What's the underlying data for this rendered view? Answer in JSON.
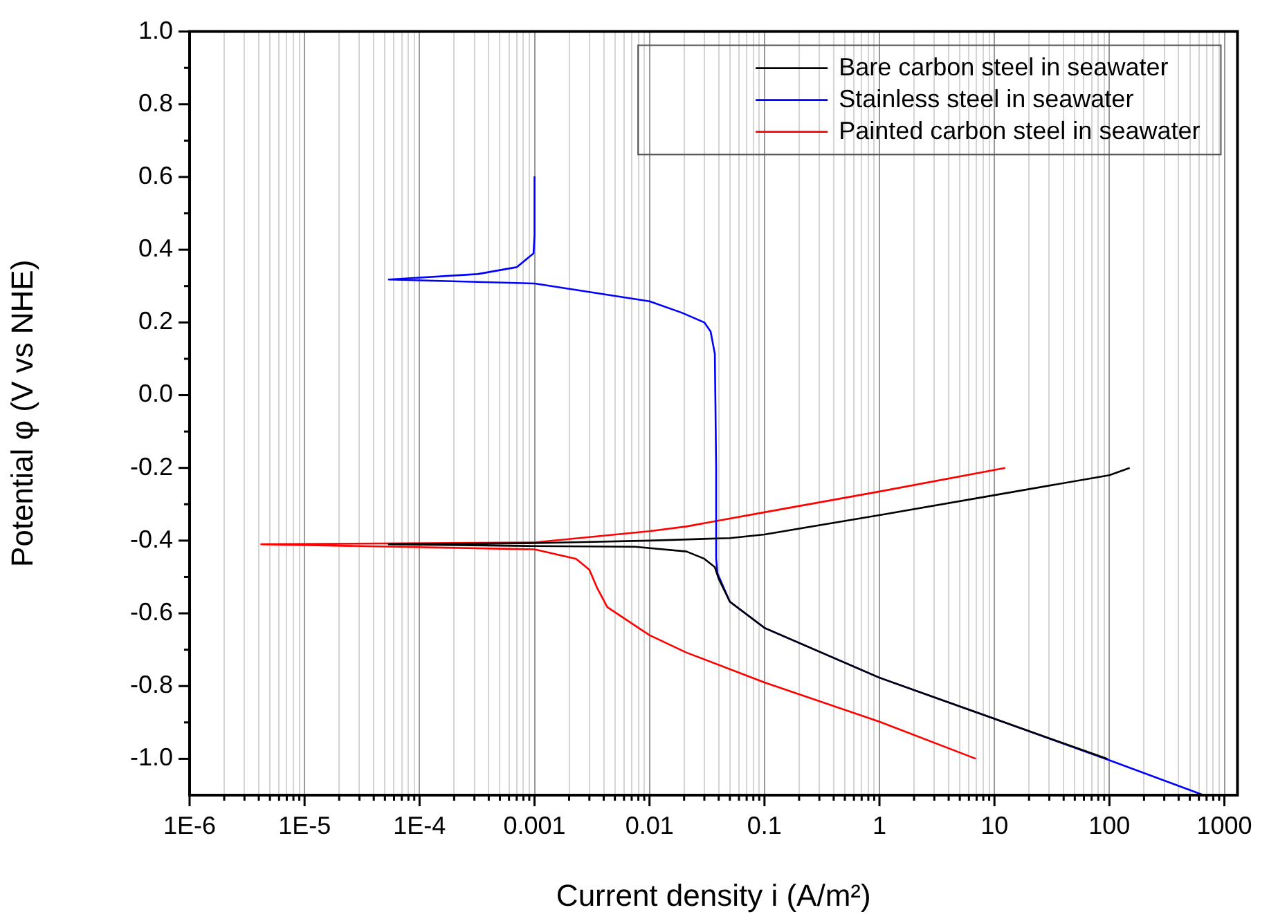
{
  "chart_data": {
    "type": "line",
    "xlabel": "Current density i (A/m²)",
    "ylabel": "Potential φ (V vs NHE)",
    "log": "x",
    "grid": "x",
    "legend": "top right",
    "line_style": "solid",
    "marker": "none",
    "xlim": [
      1e-06,
      1300
    ],
    "ylim": [
      -1.1,
      1.0
    ],
    "xticks": [
      {
        "value": 1e-06,
        "label": "1E-6"
      },
      {
        "value": 2e-06,
        "label": null
      },
      {
        "value": 3e-06,
        "label": null
      },
      {
        "value": 4e-06,
        "label": null
      },
      {
        "value": 5e-06,
        "label": null
      },
      {
        "value": 6e-06,
        "label": null
      },
      {
        "value": 7e-06,
        "label": null
      },
      {
        "value": 8e-06,
        "label": null
      },
      {
        "value": 9e-06,
        "label": null
      },
      {
        "value": 1e-05,
        "label": "1E-5"
      },
      {
        "value": 2e-05,
        "label": null
      },
      {
        "value": 3e-05,
        "label": null
      },
      {
        "value": 4e-05,
        "label": null
      },
      {
        "value": 5e-05,
        "label": null
      },
      {
        "value": 6e-05,
        "label": null
      },
      {
        "value": 7e-05,
        "label": null
      },
      {
        "value": 8e-05,
        "label": null
      },
      {
        "value": 9e-05,
        "label": null
      },
      {
        "value": 0.0001,
        "label": "1E-4"
      },
      {
        "value": 0.0002,
        "label": null
      },
      {
        "value": 0.0003,
        "label": null
      },
      {
        "value": 0.0004,
        "label": null
      },
      {
        "value": 0.0005,
        "label": null
      },
      {
        "value": 0.0006,
        "label": null
      },
      {
        "value": 0.0007,
        "label": null
      },
      {
        "value": 0.0008,
        "label": null
      },
      {
        "value": 0.0009,
        "label": null
      },
      {
        "value": 0.001,
        "label": "0.001"
      },
      {
        "value": 0.002,
        "label": null
      },
      {
        "value": 0.003,
        "label": null
      },
      {
        "value": 0.004,
        "label": null
      },
      {
        "value": 0.005,
        "label": null
      },
      {
        "value": 0.006,
        "label": null
      },
      {
        "value": 0.007,
        "label": null
      },
      {
        "value": 0.008,
        "label": null
      },
      {
        "value": 0.009,
        "label": null
      },
      {
        "value": 0.01,
        "label": "0.01"
      },
      {
        "value": 0.02,
        "label": null
      },
      {
        "value": 0.03,
        "label": null
      },
      {
        "value": 0.04,
        "label": null
      },
      {
        "value": 0.05,
        "label": null
      },
      {
        "value": 0.06,
        "label": null
      },
      {
        "value": 0.07,
        "label": null
      },
      {
        "value": 0.08,
        "label": null
      },
      {
        "value": 0.09,
        "label": null
      },
      {
        "value": 0.1,
        "label": "0.1"
      },
      {
        "value": 0.2,
        "label": null
      },
      {
        "value": 0.3,
        "label": null
      },
      {
        "value": 0.4,
        "label": null
      },
      {
        "value": 0.5,
        "label": null
      },
      {
        "value": 0.6,
        "label": null
      },
      {
        "value": 0.7,
        "label": null
      },
      {
        "value": 0.8,
        "label": null
      },
      {
        "value": 0.9,
        "label": null
      },
      {
        "value": 1,
        "label": "1"
      },
      {
        "value": 2,
        "label": null
      },
      {
        "value": 3,
        "label": null
      },
      {
        "value": 4,
        "label": null
      },
      {
        "value": 5,
        "label": null
      },
      {
        "value": 6,
        "label": null
      },
      {
        "value": 7,
        "label": null
      },
      {
        "value": 8,
        "label": null
      },
      {
        "value": 9,
        "label": null
      },
      {
        "value": 10,
        "label": "10"
      },
      {
        "value": 20,
        "label": null
      },
      {
        "value": 30,
        "label": null
      },
      {
        "value": 40,
        "label": null
      },
      {
        "value": 50,
        "label": null
      },
      {
        "value": 60,
        "label": null
      },
      {
        "value": 70,
        "label": null
      },
      {
        "value": 80,
        "label": null
      },
      {
        "value": 90,
        "label": null
      },
      {
        "value": 100,
        "label": "100"
      },
      {
        "value": 200,
        "label": null
      },
      {
        "value": 300,
        "label": null
      },
      {
        "value": 400,
        "label": null
      },
      {
        "value": 500,
        "label": null
      },
      {
        "value": 600,
        "label": null
      },
      {
        "value": 700,
        "label": null
      },
      {
        "value": 800,
        "label": null
      },
      {
        "value": 900,
        "label": null
      },
      {
        "value": 1000,
        "label": "1000"
      }
    ],
    "yticks": [
      {
        "value": -1.0,
        "label": "-1.0"
      },
      {
        "value": -0.9,
        "label": null
      },
      {
        "value": -0.8,
        "label": "-0.8"
      },
      {
        "value": -0.7,
        "label": null
      },
      {
        "value": -0.6,
        "label": "-0.6"
      },
      {
        "value": -0.5,
        "label": null
      },
      {
        "value": -0.4,
        "label": "-0.4"
      },
      {
        "value": -0.3,
        "label": null
      },
      {
        "value": -0.2,
        "label": "-0.2"
      },
      {
        "value": -0.1,
        "label": null
      },
      {
        "value": 0.0,
        "label": "0.0"
      },
      {
        "value": 0.1,
        "label": null
      },
      {
        "value": 0.2,
        "label": "0.2"
      },
      {
        "value": 0.3,
        "label": null
      },
      {
        "value": 0.4,
        "label": "0.4"
      },
      {
        "value": 0.5,
        "label": null
      },
      {
        "value": 0.6,
        "label": "0.6"
      },
      {
        "value": 0.7,
        "label": null
      },
      {
        "value": 0.8,
        "label": "0.8"
      },
      {
        "value": 0.9,
        "label": null
      },
      {
        "value": 1.0,
        "label": "1.0"
      }
    ],
    "series": [
      {
        "name": "Bare carbon steel in seawater",
        "color": "#000000",
        "x": [
          150,
          100,
          10,
          1,
          0.1,
          0.05,
          0.01,
          0.001,
          5.4e-05,
          0.001,
          0.0075,
          0.021,
          0.03,
          0.037,
          0.04,
          0.05,
          0.1,
          1,
          10,
          96
        ],
        "values": [
          -0.2,
          -0.22,
          -0.275,
          -0.33,
          -0.383,
          -0.393,
          -0.4,
          -0.407,
          -0.41,
          -0.415,
          -0.417,
          -0.43,
          -0.45,
          -0.473,
          -0.505,
          -0.568,
          -0.64,
          -0.777,
          -0.89,
          -1.0
        ]
      },
      {
        "name": "Stainless steel in seawater",
        "color": "#0000ff",
        "x": [
          0.001,
          0.001,
          0.00098,
          0.0007,
          0.00032,
          5.4e-05,
          0.001,
          0.01,
          0.019,
          0.03,
          0.034,
          0.037,
          0.038,
          0.038,
          0.039,
          0.05,
          0.1,
          1,
          10,
          100,
          660
        ],
        "values": [
          0.6,
          0.44,
          0.39,
          0.352,
          0.333,
          0.318,
          0.307,
          0.258,
          0.227,
          0.2,
          0.175,
          0.114,
          -0.2,
          -0.45,
          -0.49,
          -0.568,
          -0.64,
          -0.777,
          -0.89,
          -1.004,
          -1.1
        ]
      },
      {
        "name": "Painted carbon steel in seawater",
        "color": "#ff0000",
        "x": [
          12.4,
          1,
          0.1,
          0.021,
          0.01,
          0.001,
          4.2e-06,
          0.001,
          0.0023,
          0.003,
          0.0035,
          0.0043,
          0.01,
          0.021,
          0.1,
          1,
          6.9
        ],
        "values": [
          -0.2,
          -0.265,
          -0.322,
          -0.361,
          -0.374,
          -0.405,
          -0.41,
          -0.424,
          -0.45,
          -0.48,
          -0.53,
          -0.583,
          -0.66,
          -0.708,
          -0.79,
          -0.898,
          -1.0
        ]
      }
    ]
  }
}
